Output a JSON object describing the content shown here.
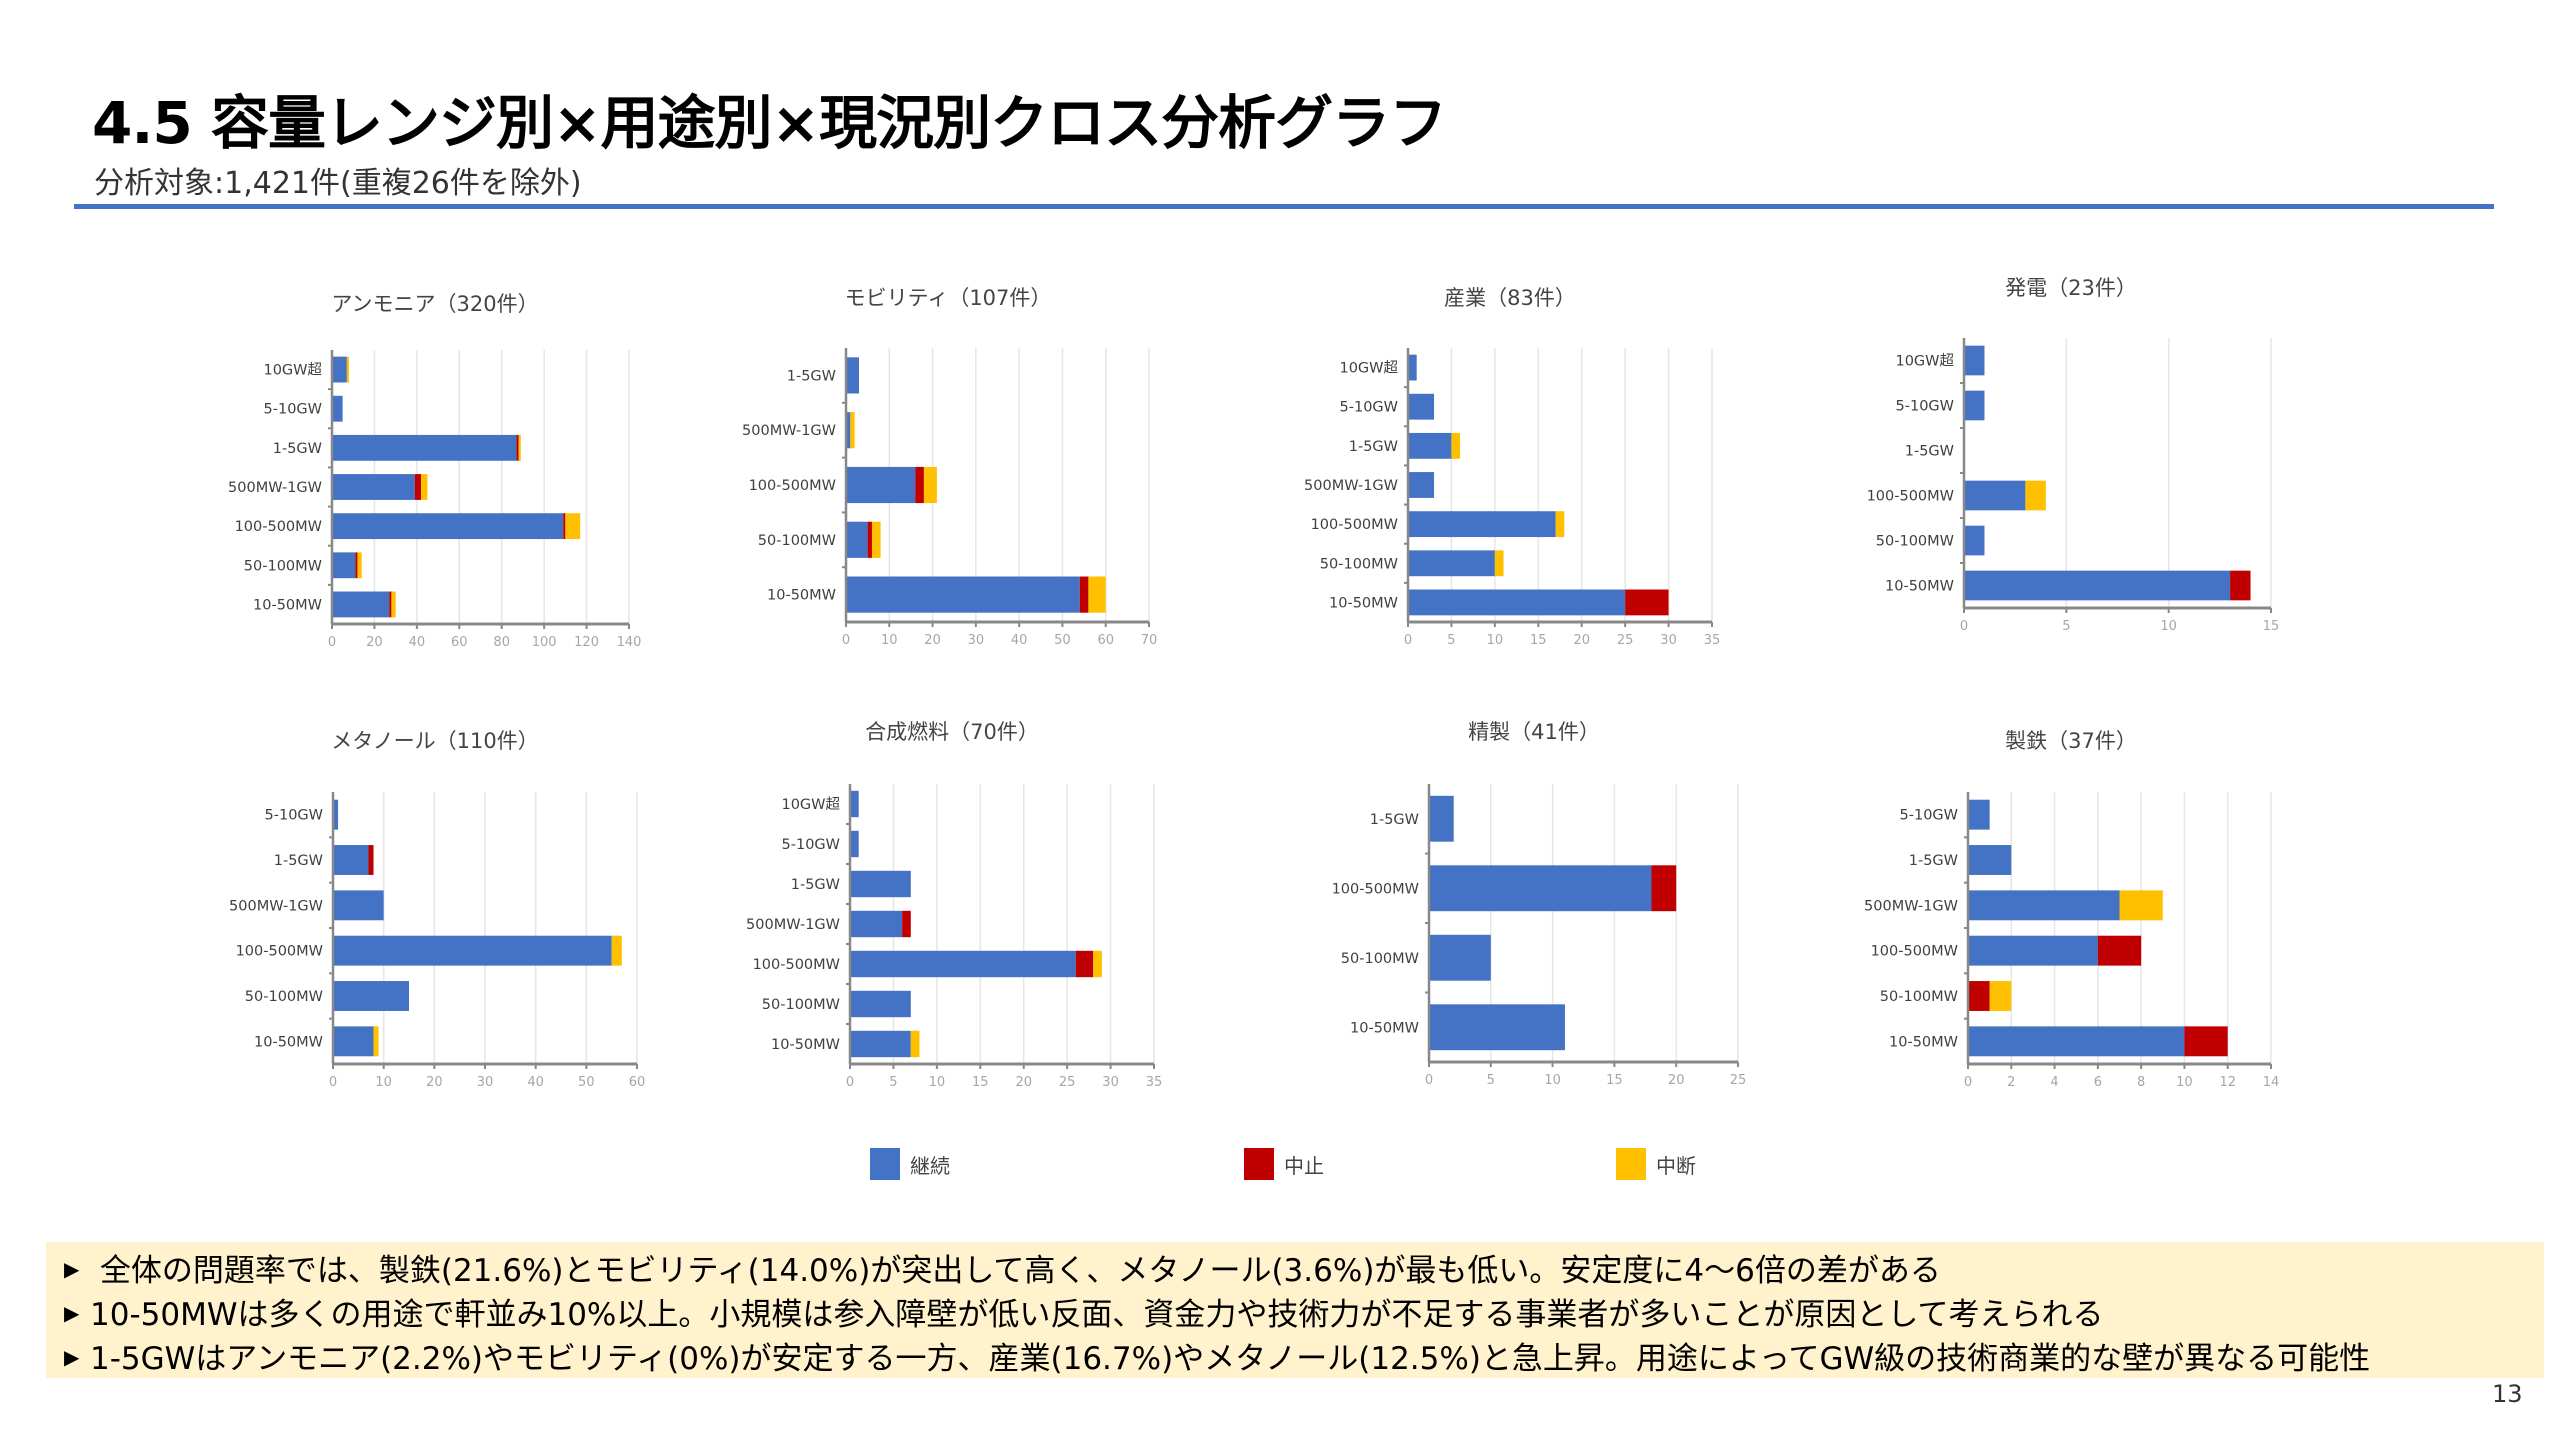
{
  "header": {
    "title": "4.5 容量レンジ別×用途別×現況別クロス分析グラフ",
    "subtitle": "分析対象:1,421件(重複26件を除外)"
  },
  "colors": {
    "継続": "#4472C4",
    "中止": "#C00000",
    "中断": "#FFC000",
    "rule": "#4472C4"
  },
  "legend": [
    {
      "label": "継続",
      "color": "#4472C4"
    },
    {
      "label": "中止",
      "color": "#C00000"
    },
    {
      "label": "中断",
      "color": "#FFC000"
    }
  ],
  "chart_data": [
    {
      "type": "bar",
      "orientation": "horizontal",
      "stacked": true,
      "title": "アンモニア（320件）",
      "categories": [
        "10GW超",
        "5-10GW",
        "1-5GW",
        "500MW-1GW",
        "100-500MW",
        "50-100MW",
        "10-50MW"
      ],
      "series": [
        {
          "name": "継続",
          "values": [
            7,
            5,
            87,
            39,
            109,
            11,
            27
          ]
        },
        {
          "name": "中止",
          "values": [
            0,
            0,
            1,
            3,
            1,
            1,
            1
          ]
        },
        {
          "name": "中断",
          "values": [
            1,
            0,
            1,
            3,
            7,
            2,
            2
          ]
        }
      ],
      "xlim": [
        0,
        140
      ],
      "xticks": [
        0,
        20,
        40,
        60,
        80,
        100,
        120,
        140
      ],
      "grid": true
    },
    {
      "type": "bar",
      "orientation": "horizontal",
      "stacked": true,
      "title": "モビリティ（107件）",
      "categories": [
        "1-5GW",
        "500MW-1GW",
        "100-500MW",
        "50-100MW",
        "10-50MW"
      ],
      "series": [
        {
          "name": "継続",
          "values": [
            3,
            1,
            16,
            5,
            54
          ]
        },
        {
          "name": "中止",
          "values": [
            0,
            0,
            2,
            1,
            2
          ]
        },
        {
          "name": "中断",
          "values": [
            0,
            1,
            3,
            2,
            4
          ]
        }
      ],
      "xlim": [
        0,
        70
      ],
      "xticks": [
        0,
        10,
        20,
        30,
        40,
        50,
        60,
        70
      ],
      "grid": true
    },
    {
      "type": "bar",
      "orientation": "horizontal",
      "stacked": true,
      "title": "産業（83件）",
      "categories": [
        "10GW超",
        "5-10GW",
        "1-5GW",
        "500MW-1GW",
        "100-500MW",
        "50-100MW",
        "10-50MW"
      ],
      "series": [
        {
          "name": "継続",
          "values": [
            1,
            3,
            5,
            3,
            17,
            10,
            25
          ]
        },
        {
          "name": "中止",
          "values": [
            0,
            0,
            0,
            0,
            0,
            0,
            5
          ]
        },
        {
          "name": "中断",
          "values": [
            0,
            0,
            1,
            0,
            1,
            1,
            0
          ]
        }
      ],
      "xlim": [
        0,
        35
      ],
      "xticks": [
        0,
        5,
        10,
        15,
        20,
        25,
        30,
        35
      ],
      "grid": true
    },
    {
      "type": "bar",
      "orientation": "horizontal",
      "stacked": true,
      "title": "発電（23件）",
      "categories": [
        "10GW超",
        "5-10GW",
        "1-5GW",
        "100-500MW",
        "50-100MW",
        "10-50MW"
      ],
      "series": [
        {
          "name": "継続",
          "values": [
            1,
            1,
            0,
            3,
            1,
            13
          ]
        },
        {
          "name": "中止",
          "values": [
            0,
            0,
            0,
            0,
            0,
            1
          ]
        },
        {
          "name": "中断",
          "values": [
            0,
            0,
            0,
            1,
            0,
            0
          ]
        }
      ],
      "xlim": [
        0,
        15
      ],
      "xticks": [
        0,
        5,
        10,
        15
      ],
      "grid": true
    },
    {
      "type": "bar",
      "orientation": "horizontal",
      "stacked": true,
      "title": "メタノール（110件）",
      "categories": [
        "5-10GW",
        "1-5GW",
        "500MW-1GW",
        "100-500MW",
        "50-100MW",
        "10-50MW"
      ],
      "series": [
        {
          "name": "継続",
          "values": [
            1,
            7,
            10,
            55,
            15,
            8
          ]
        },
        {
          "name": "中止",
          "values": [
            0,
            1,
            0,
            0,
            0,
            0
          ]
        },
        {
          "name": "中断",
          "values": [
            0,
            0,
            0,
            2,
            0,
            1
          ]
        }
      ],
      "xlim": [
        0,
        60
      ],
      "xticks": [
        0,
        10,
        20,
        30,
        40,
        50,
        60
      ],
      "grid": true
    },
    {
      "type": "bar",
      "orientation": "horizontal",
      "stacked": true,
      "title": "合成燃料（70件）",
      "categories": [
        "10GW超",
        "5-10GW",
        "1-5GW",
        "500MW-1GW",
        "100-500MW",
        "50-100MW",
        "10-50MW"
      ],
      "series": [
        {
          "name": "継続",
          "values": [
            1,
            1,
            7,
            6,
            26,
            7,
            7
          ]
        },
        {
          "name": "中止",
          "values": [
            0,
            0,
            0,
            1,
            2,
            0,
            0
          ]
        },
        {
          "name": "中断",
          "values": [
            0,
            0,
            0,
            0,
            1,
            0,
            1
          ]
        }
      ],
      "xlim": [
        0,
        35
      ],
      "xticks": [
        0,
        5,
        10,
        15,
        20,
        25,
        30,
        35
      ],
      "grid": true
    },
    {
      "type": "bar",
      "orientation": "horizontal",
      "stacked": true,
      "title": "精製（41件）",
      "categories": [
        "1-5GW",
        "100-500MW",
        "50-100MW",
        "10-50MW"
      ],
      "series": [
        {
          "name": "継続",
          "values": [
            2,
            18,
            5,
            11
          ]
        },
        {
          "name": "中止",
          "values": [
            0,
            2,
            0,
            0
          ]
        },
        {
          "name": "中断",
          "values": [
            0,
            0,
            0,
            0
          ]
        }
      ],
      "xlim": [
        0,
        25
      ],
      "xticks": [
        0,
        5,
        10,
        15,
        20,
        25
      ],
      "grid": true
    },
    {
      "type": "bar",
      "orientation": "horizontal",
      "stacked": true,
      "title": "製鉄（37件）",
      "categories": [
        "5-10GW",
        "1-5GW",
        "500MW-1GW",
        "100-500MW",
        "50-100MW",
        "10-50MW"
      ],
      "series": [
        {
          "name": "継続",
          "values": [
            1,
            2,
            7,
            6,
            0,
            10
          ]
        },
        {
          "name": "中止",
          "values": [
            0,
            0,
            0,
            2,
            1,
            2
          ]
        },
        {
          "name": "中断",
          "values": [
            0,
            0,
            2,
            0,
            1,
            0
          ]
        }
      ],
      "xlim": [
        0,
        14
      ],
      "xticks": [
        0,
        2,
        4,
        6,
        8,
        10,
        12,
        14
      ],
      "grid": true
    }
  ],
  "notes": [
    {
      "bullet": "▶",
      "text": " 全体の問題率では、製鉄(21.6%)とモビリティ(14.0%)が突出して高く、メタノール(3.6%)が最も低い。安定度に4〜6倍の差がある"
    },
    {
      "bullet": "▶",
      "text": "10-50MWは多くの用途で軒並み10%以上。小規模は参入障壁が低い反面、資金力や技術力が不足する事業者が多いことが原因として考えられる"
    },
    {
      "bullet": "▶",
      "text": "1-5GWはアンモニア(2.2%)やモビリティ(0%)が安定する一方、産業(16.7%)やメタノール(12.5%)と急上昇。用途によってGW級の技術商業的な壁が異なる可能性"
    }
  ],
  "page_number": "13"
}
